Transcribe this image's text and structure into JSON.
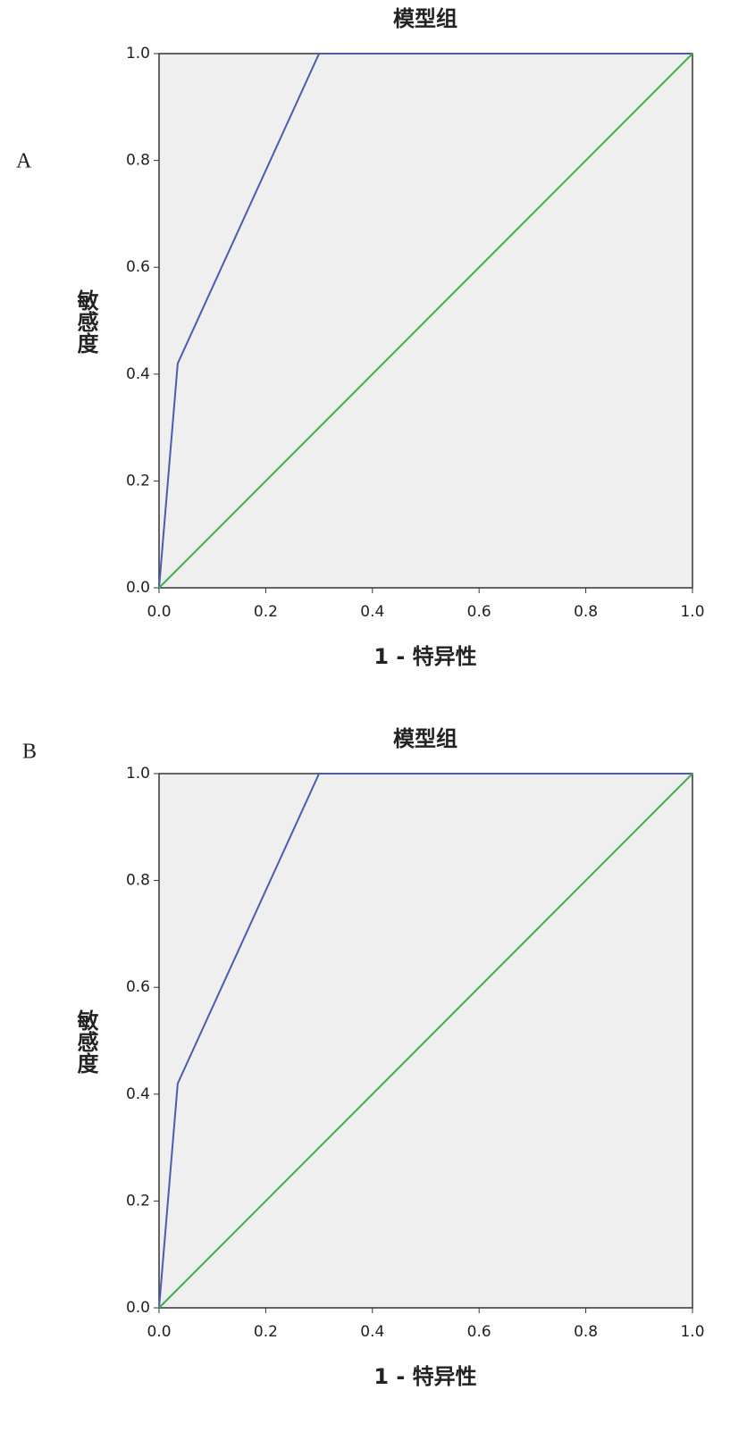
{
  "chart_data": [
    {
      "type": "line",
      "panel_label": "A",
      "title": "模型组",
      "x_label": "1 - 特异性",
      "y_label": "敏感度",
      "xlim": [
        0,
        1
      ],
      "ylim": [
        0,
        1
      ],
      "xticks": [
        {
          "value": 0,
          "label": "0.0"
        },
        0.2,
        0.4,
        0.6,
        0.8,
        {
          "value": 1,
          "label": "1.0"
        }
      ],
      "yticks": [
        {
          "value": 0,
          "label": "0.0"
        },
        0.2,
        0.4,
        0.6,
        0.8,
        {
          "value": 1,
          "label": "1.0"
        }
      ],
      "series": [
        {
          "color": "#4a5cb0",
          "x": [
            0,
            0.035,
            0.3,
            1
          ],
          "values": [
            0,
            0.42,
            1,
            1
          ]
        },
        {
          "color": "#3cb043",
          "x": [
            0,
            1
          ],
          "values": [
            0,
            1
          ]
        }
      ]
    },
    {
      "type": "line",
      "panel_label": "B",
      "title": "模型组",
      "x_label": "1 - 特异性",
      "y_label": "敏感度",
      "xlim": [
        0,
        1
      ],
      "ylim": [
        0,
        1
      ],
      "xticks": [
        {
          "value": 0,
          "label": "0.0"
        },
        0.2,
        0.4,
        0.6,
        0.8,
        {
          "value": 1,
          "label": "1.0"
        }
      ],
      "yticks": [
        {
          "value": 0,
          "label": "0.0"
        },
        0.2,
        0.4,
        0.6,
        0.8,
        {
          "value": 1,
          "label": "1.0"
        }
      ],
      "series": [
        {
          "color": "#4a5cb0",
          "x": [
            0,
            0.035,
            0.3,
            1
          ],
          "values": [
            0,
            0.42,
            1,
            1
          ]
        },
        {
          "color": "#3cb043",
          "x": [
            0,
            1
          ],
          "values": [
            0,
            1
          ]
        }
      ]
    }
  ]
}
